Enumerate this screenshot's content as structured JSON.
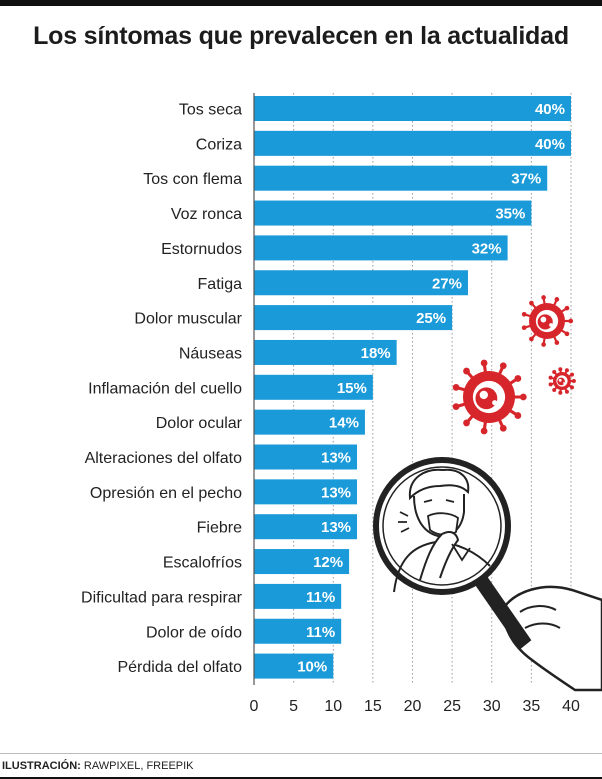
{
  "title": "Los síntomas que prevalecen en la actualidad",
  "credit": {
    "label": "ILUSTRACIÓN:",
    "text": "RAWPIXEL, FREEPIK"
  },
  "colors": {
    "bar": "#1a9ad8",
    "grid": "#9a9a9a",
    "virus": "#d7262b"
  },
  "illustration": {
    "icons": [
      "virus-icon",
      "magnifying-glass-icon",
      "coughing-person-icon"
    ]
  },
  "chart_data": {
    "type": "bar",
    "orientation": "horizontal",
    "categories": [
      "Tos seca",
      "Coriza",
      "Tos con flema",
      "Voz ronca",
      "Estornudos",
      "Fatiga",
      "Dolor muscular",
      "Náuseas",
      "Inflamación del cuello",
      "Dolor ocular",
      "Alteraciones del olfato",
      "Opresión en el pecho",
      "Fiebre",
      "Escalofríos",
      "Dificultad para respirar",
      "Dolor de oído",
      "Pérdida del olfato"
    ],
    "values": [
      40,
      40,
      37,
      35,
      32,
      27,
      25,
      18,
      15,
      14,
      13,
      13,
      13,
      12,
      11,
      11,
      10
    ],
    "data_labels": [
      "40%",
      "40%",
      "37%",
      "35%",
      "32%",
      "27%",
      "25%",
      "18%",
      "15%",
      "14%",
      "13%",
      "13%",
      "13%",
      "12%",
      "11%",
      "11%",
      "10%"
    ],
    "x_ticks": [
      0,
      5,
      10,
      15,
      20,
      25,
      30,
      35,
      40
    ],
    "xlim": [
      0,
      40
    ],
    "grid": true
  }
}
